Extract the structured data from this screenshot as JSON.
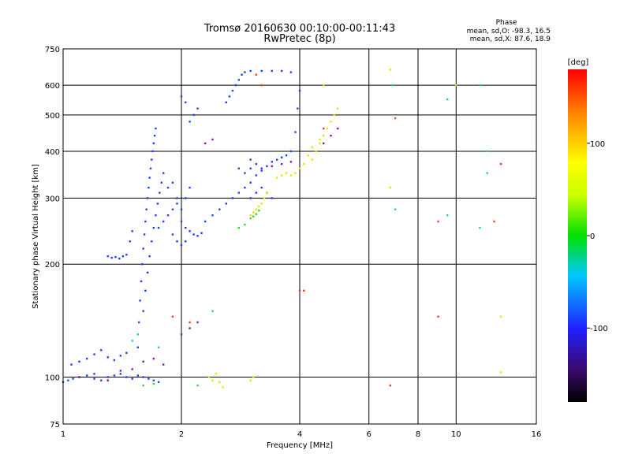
{
  "chart_data": {
    "type": "scatter",
    "title": "Tromsø 20160630 00:10:00-00:11:43",
    "subtitle": "RwPretec (8p)",
    "xlabel": "Frequency [MHz]",
    "ylabel": "Stationary phase Virtual Height [km]",
    "x_scale": "log",
    "y_scale": "log",
    "xlim": [
      1,
      16
    ],
    "ylim": [
      75,
      750
    ],
    "x_ticks": [
      1,
      2,
      4,
      6,
      8,
      10,
      16
    ],
    "y_ticks": [
      75,
      100,
      200,
      300,
      400,
      500,
      600,
      750
    ],
    "grid": true,
    "phase_info": {
      "heading": "Phase",
      "line1": "mean, sd,O: -98.3, 16.5",
      "line2": "mean, sd,X: 87.6, 18.9"
    },
    "colorbar": {
      "label": "[deg]",
      "min": -180,
      "max": 180,
      "ticks": [
        100,
        0,
        -100
      ],
      "tick_labels": [
        "100",
        "0",
        "-100"
      ]
    },
    "series": [
      {
        "points": [
          [
            1.0,
            97
          ],
          [
            1.03,
            98
          ],
          [
            1.06,
            99
          ],
          [
            1.1,
            100
          ],
          [
            1.15,
            101
          ],
          [
            1.2,
            99
          ],
          [
            1.25,
            98
          ],
          [
            1.3,
            100
          ],
          [
            1.35,
            101
          ],
          [
            1.4,
            102
          ],
          [
            1.45,
            100
          ],
          [
            1.5,
            99
          ],
          [
            1.55,
            101
          ],
          [
            1.6,
            100
          ],
          [
            1.65,
            99
          ],
          [
            1.7,
            98
          ],
          [
            1.75,
            97
          ],
          [
            1.05,
            108
          ],
          [
            1.1,
            110
          ],
          [
            1.15,
            112
          ],
          [
            1.2,
            115
          ],
          [
            1.25,
            118
          ],
          [
            1.3,
            113
          ],
          [
            1.35,
            111
          ],
          [
            1.4,
            114
          ],
          [
            1.45,
            116
          ],
          [
            1.3,
            210
          ],
          [
            1.33,
            208
          ],
          [
            1.36,
            209
          ],
          [
            1.39,
            207
          ],
          [
            1.42,
            210
          ],
          [
            1.45,
            212
          ],
          [
            1.48,
            230
          ],
          [
            1.5,
            245
          ],
          [
            1.55,
            120
          ],
          [
            1.56,
            140
          ],
          [
            1.57,
            160
          ],
          [
            1.58,
            180
          ],
          [
            1.59,
            200
          ],
          [
            1.6,
            220
          ],
          [
            1.61,
            240
          ],
          [
            1.62,
            260
          ],
          [
            1.63,
            280
          ],
          [
            1.64,
            300
          ],
          [
            1.65,
            320
          ],
          [
            1.66,
            340
          ],
          [
            1.67,
            360
          ],
          [
            1.68,
            380
          ],
          [
            1.69,
            400
          ],
          [
            1.7,
            420
          ],
          [
            1.71,
            440
          ],
          [
            1.72,
            460
          ],
          [
            1.6,
            150
          ],
          [
            1.62,
            170
          ],
          [
            1.64,
            190
          ],
          [
            1.66,
            210
          ],
          [
            1.68,
            230
          ],
          [
            1.7,
            250
          ],
          [
            1.72,
            270
          ],
          [
            1.74,
            290
          ],
          [
            1.76,
            310
          ],
          [
            1.78,
            330
          ],
          [
            1.8,
            350
          ],
          [
            1.75,
            250
          ],
          [
            1.8,
            260
          ],
          [
            1.85,
            270
          ],
          [
            1.9,
            280
          ],
          [
            1.95,
            290
          ],
          [
            2.0,
            260
          ],
          [
            2.05,
            250
          ],
          [
            2.1,
            245
          ],
          [
            2.15,
            240
          ],
          [
            2.2,
            238
          ],
          [
            2.25,
            242
          ],
          [
            1.85,
            320
          ],
          [
            1.9,
            330
          ],
          [
            1.95,
            300
          ],
          [
            2.0,
            280
          ],
          [
            2.05,
            300
          ],
          [
            2.1,
            320
          ],
          [
            1.9,
            240
          ],
          [
            1.95,
            230
          ],
          [
            2.0,
            225
          ],
          [
            2.05,
            230
          ],
          [
            2.3,
            260
          ],
          [
            2.4,
            270
          ],
          [
            2.5,
            280
          ],
          [
            2.6,
            290
          ],
          [
            2.7,
            300
          ],
          [
            2.8,
            310
          ],
          [
            2.9,
            320
          ],
          [
            3.0,
            330
          ],
          [
            3.1,
            345
          ],
          [
            3.2,
            355
          ],
          [
            3.3,
            365
          ],
          [
            3.4,
            375
          ],
          [
            3.5,
            380
          ],
          [
            3.6,
            385
          ],
          [
            3.7,
            390
          ],
          [
            3.8,
            400
          ],
          [
            3.9,
            450
          ],
          [
            3.95,
            520
          ],
          [
            4.0,
            580
          ],
          [
            2.6,
            540
          ],
          [
            2.65,
            560
          ],
          [
            2.7,
            580
          ],
          [
            2.75,
            600
          ],
          [
            2.8,
            620
          ],
          [
            2.85,
            640
          ],
          [
            2.9,
            650
          ],
          [
            3.0,
            655
          ],
          [
            3.2,
            655
          ],
          [
            3.4,
            655
          ],
          [
            3.6,
            655
          ],
          [
            3.8,
            650
          ],
          [
            2.1,
            480
          ],
          [
            2.15,
            500
          ],
          [
            2.2,
            520
          ],
          [
            2.0,
            560
          ],
          [
            2.05,
            540
          ],
          [
            3.0,
            300
          ],
          [
            3.1,
            310
          ],
          [
            3.2,
            320
          ],
          [
            3.3,
            310
          ],
          [
            3.4,
            300
          ],
          [
            2.9,
            350
          ],
          [
            3.0,
            360
          ],
          [
            3.1,
            370
          ]
        ],
        "color": "#1f3fff"
      },
      {
        "points": [
          [
            1.1,
            100
          ],
          [
            1.2,
            102
          ],
          [
            1.3,
            98
          ],
          [
            1.4,
            104
          ],
          [
            1.5,
            105
          ],
          [
            1.6,
            110
          ],
          [
            1.7,
            112
          ],
          [
            1.8,
            108
          ],
          [
            2.0,
            130
          ],
          [
            2.1,
            135
          ],
          [
            2.2,
            140
          ],
          [
            3.2,
            360
          ],
          [
            3.4,
            365
          ],
          [
            3.6,
            370
          ],
          [
            3.8,
            375
          ],
          [
            4.6,
            420
          ],
          [
            4.8,
            440
          ],
          [
            5.0,
            460
          ],
          [
            2.3,
            420
          ],
          [
            2.4,
            430
          ],
          [
            2.8,
            360
          ],
          [
            3.0,
            380
          ]
        ],
        "color": "#7a1f9f"
      },
      {
        "points": [
          [
            3.0,
            270
          ],
          [
            3.05,
            275
          ],
          [
            3.1,
            280
          ],
          [
            3.15,
            285
          ],
          [
            3.2,
            290
          ],
          [
            3.25,
            300
          ],
          [
            3.3,
            310
          ],
          [
            3.5,
            340
          ],
          [
            3.6,
            345
          ],
          [
            3.7,
            350
          ],
          [
            3.8,
            345
          ],
          [
            3.9,
            350
          ],
          [
            4.0,
            360
          ],
          [
            4.1,
            370
          ],
          [
            4.3,
            380
          ],
          [
            4.4,
            400
          ],
          [
            4.5,
            420
          ],
          [
            4.6,
            440
          ],
          [
            4.7,
            460
          ],
          [
            4.8,
            480
          ],
          [
            4.9,
            500
          ],
          [
            5.0,
            520
          ],
          [
            4.6,
            600
          ],
          [
            4.2,
            390
          ],
          [
            4.3,
            410
          ],
          [
            4.5,
            430
          ],
          [
            2.35,
            100
          ],
          [
            2.4,
            98
          ],
          [
            2.45,
            102
          ],
          [
            2.5,
            97
          ],
          [
            2.55,
            94
          ],
          [
            3.0,
            98
          ],
          [
            3.05,
            100
          ],
          [
            10.0,
            600
          ],
          [
            13.0,
            370
          ],
          [
            13.0,
            145
          ],
          [
            13.0,
            103
          ],
          [
            6.8,
            660
          ],
          [
            6.8,
            320
          ]
        ],
        "color": "#e6e600"
      },
      {
        "points": [
          [
            3.0,
            265
          ],
          [
            3.05,
            268
          ],
          [
            3.1,
            272
          ],
          [
            3.15,
            278
          ],
          [
            2.8,
            250
          ],
          [
            2.9,
            255
          ],
          [
            1.6,
            95
          ],
          [
            1.7,
            96
          ],
          [
            2.2,
            95
          ]
        ],
        "color": "#2fd62f"
      },
      {
        "points": [
          [
            1.5,
            125
          ],
          [
            1.55,
            130
          ],
          [
            1.75,
            120
          ],
          [
            2.4,
            150
          ],
          [
            6.9,
            600
          ],
          [
            9.5,
            550
          ],
          [
            11.5,
            600
          ],
          [
            12.0,
            400
          ],
          [
            12.0,
            350
          ],
          [
            11.5,
            250
          ],
          [
            9.5,
            270
          ],
          [
            7.0,
            280
          ]
        ],
        "color": "#20c8d8"
      },
      {
        "points": [
          [
            1.9,
            145
          ],
          [
            2.1,
            140
          ],
          [
            3.1,
            640
          ],
          [
            3.2,
            600
          ],
          [
            4.0,
            170
          ],
          [
            4.1,
            170
          ],
          [
            6.8,
            95
          ],
          [
            9.0,
            145
          ],
          [
            9.0,
            260
          ],
          [
            7.0,
            490
          ],
          [
            12.5,
            260
          ],
          [
            13.0,
            370
          ],
          [
            4.6,
            460
          ]
        ],
        "color": "#ff3a1a"
      }
    ]
  }
}
